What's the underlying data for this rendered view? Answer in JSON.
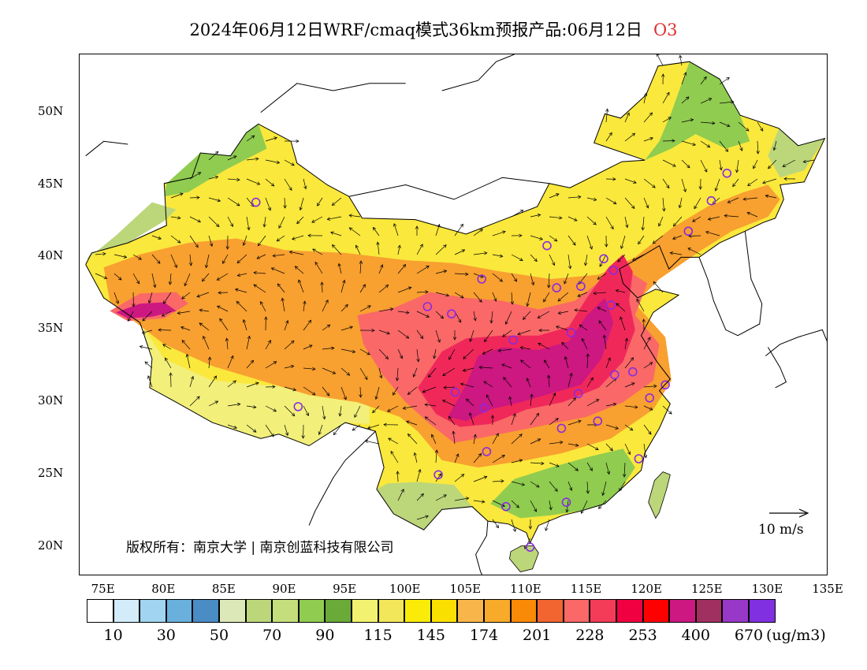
{
  "title": {
    "main": "2024年06月12日WRF/cmaq模式36km预报产品:06月12日",
    "variable": "O3"
  },
  "axes": {
    "lat_labels": [
      "50N",
      "45N",
      "40N",
      "35N",
      "30N",
      "25N",
      "20N"
    ],
    "lon_labels": [
      "75E",
      "80E",
      "85E",
      "90E",
      "95E",
      "100E",
      "105E",
      "110E",
      "115E",
      "120E",
      "125E",
      "130E",
      "135E"
    ]
  },
  "copyright": "版权所有：南京大学 | 南京创蓝科技有限公司",
  "wind_reference": "10 m/s",
  "legend": {
    "unit": "(ug/m3)",
    "colors": [
      "#ffffff",
      "#d2ecfa",
      "#a0d4f0",
      "#6ab0dc",
      "#4a8cc4",
      "#dde8b8",
      "#bcd67a",
      "#c4de7c",
      "#90cc50",
      "#6aaa38",
      "#f2f270",
      "#f2e65a",
      "#faec08",
      "#fae000",
      "#f8b64a",
      "#f8aa2a",
      "#f88a08",
      "#f26430",
      "#fa6868",
      "#f43c58",
      "#f00040",
      "#ff0000",
      "#cc1880",
      "#a03060",
      "#9838c8",
      "#8030e0"
    ],
    "labels": [
      "10",
      "30",
      "50",
      "70",
      "90",
      "115",
      "145",
      "174",
      "201",
      "228",
      "253",
      "400",
      "670"
    ]
  },
  "map": {
    "extent": {
      "lon": [
        73,
        135
      ],
      "lat": [
        18,
        54
      ]
    },
    "colors": {
      "sea_border": "#000000",
      "very_high": "#cc1880",
      "high": "#f0285a",
      "elevated": "#fa6868",
      "orange": "#f8a030",
      "yellow": "#fae83c",
      "light_yellow": "#f2f07a",
      "green": "#90cc50",
      "light_green": "#bcd67a",
      "station": "#8a2be2"
    },
    "stations": [
      {
        "lon": 87.6,
        "lat": 43.8
      },
      {
        "lon": 91.1,
        "lat": 29.7
      },
      {
        "lon": 101.8,
        "lat": 36.6
      },
      {
        "lon": 103.8,
        "lat": 36.1
      },
      {
        "lon": 106.3,
        "lat": 38.5
      },
      {
        "lon": 111.7,
        "lat": 40.8
      },
      {
        "lon": 112.5,
        "lat": 37.9
      },
      {
        "lon": 114.5,
        "lat": 38.0
      },
      {
        "lon": 116.4,
        "lat": 39.9
      },
      {
        "lon": 117.2,
        "lat": 39.1
      },
      {
        "lon": 117.0,
        "lat": 36.7
      },
      {
        "lon": 113.7,
        "lat": 34.8
      },
      {
        "lon": 108.9,
        "lat": 34.3
      },
      {
        "lon": 104.1,
        "lat": 30.7
      },
      {
        "lon": 106.5,
        "lat": 29.6
      },
      {
        "lon": 114.3,
        "lat": 30.6
      },
      {
        "lon": 112.9,
        "lat": 28.2
      },
      {
        "lon": 115.9,
        "lat": 28.7
      },
      {
        "lon": 117.3,
        "lat": 31.9
      },
      {
        "lon": 118.8,
        "lat": 32.1
      },
      {
        "lon": 120.2,
        "lat": 30.3
      },
      {
        "lon": 121.5,
        "lat": 31.2
      },
      {
        "lon": 119.3,
        "lat": 26.1
      },
      {
        "lon": 113.3,
        "lat": 23.1
      },
      {
        "lon": 108.3,
        "lat": 22.8
      },
      {
        "lon": 102.7,
        "lat": 25.0
      },
      {
        "lon": 106.7,
        "lat": 26.6
      },
      {
        "lon": 110.3,
        "lat": 20.0
      },
      {
        "lon": 123.4,
        "lat": 41.8
      },
      {
        "lon": 125.3,
        "lat": 43.9
      },
      {
        "lon": 126.6,
        "lat": 45.8
      }
    ]
  }
}
